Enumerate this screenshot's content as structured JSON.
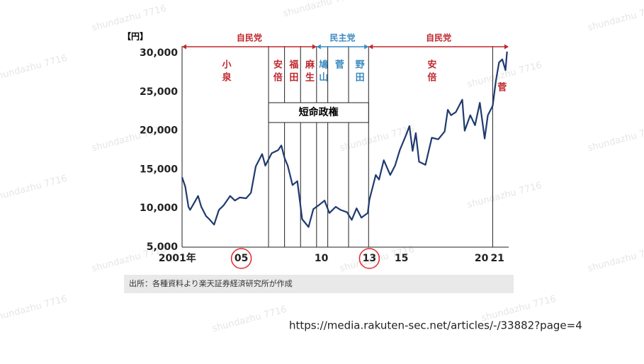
{
  "chart_data": {
    "type": "line",
    "y_unit": "【円】",
    "x": [
      2001.3,
      2001.5,
      2001.7,
      2001.8,
      2002.0,
      2002.3,
      2002.5,
      2002.8,
      2003.0,
      2003.3,
      2003.6,
      2003.9,
      2004.3,
      2004.6,
      2004.9,
      2005.3,
      2005.6,
      2005.9,
      2006.3,
      2006.5,
      2006.9,
      2007.3,
      2007.5,
      2007.7,
      2007.9,
      2008.2,
      2008.5,
      2008.8,
      2009.2,
      2009.5,
      2009.9,
      2010.2,
      2010.5,
      2010.9,
      2011.2,
      2011.6,
      2011.9,
      2012.2,
      2012.5,
      2012.9,
      2013.0,
      2013.4,
      2013.6,
      2013.9,
      2014.3,
      2014.6,
      2014.9,
      2015.3,
      2015.5,
      2015.7,
      2015.9,
      2016.1,
      2016.5,
      2016.9,
      2017.3,
      2017.7,
      2017.9,
      2018.1,
      2018.4,
      2018.8,
      2018.95,
      2019.3,
      2019.6,
      2019.9,
      2020.2,
      2020.4,
      2020.7,
      2020.9,
      2021.1,
      2021.3,
      2021.5,
      2021.6
    ],
    "values": [
      14000,
      12800,
      10200,
      9800,
      10500,
      11600,
      10200,
      9000,
      8600,
      7900,
      9800,
      10400,
      11600,
      11000,
      11400,
      11300,
      12000,
      15400,
      17000,
      15500,
      17100,
      17500,
      18100,
      16500,
      15500,
      13000,
      13500,
      8600,
      7600,
      9900,
      10500,
      11000,
      9400,
      10200,
      9800,
      9500,
      8500,
      10000,
      8800,
      9400,
      11100,
      14300,
      13700,
      16200,
      14300,
      15500,
      17500,
      19500,
      20600,
      17400,
      19700,
      16000,
      15600,
      19100,
      18900,
      19900,
      22700,
      22000,
      22400,
      24000,
      20000,
      22000,
      20700,
      23600,
      19000,
      22000,
      23200,
      26400,
      28800,
      29200,
      27800,
      30200
    ],
    "color": "#1f3a6e",
    "xlim": [
      2001.3,
      2021.7
    ],
    "xticks": [
      {
        "value": 2001,
        "label": "2001年"
      },
      {
        "value": 2005,
        "label": "05"
      },
      {
        "value": 2010,
        "label": "10"
      },
      {
        "value": 2013,
        "label": "13"
      },
      {
        "value": 2015,
        "label": "15"
      },
      {
        "value": 2020,
        "label": "20"
      },
      {
        "value": 2021,
        "label": "21"
      }
    ],
    "circled_xticks": [
      1,
      3
    ],
    "circle_color": "#e0282d",
    "ylim": [
      5000,
      30000
    ],
    "yticks": [
      {
        "value": 5000,
        "label": "5,000"
      },
      {
        "value": 10000,
        "label": "10,000"
      },
      {
        "value": 15000,
        "label": "15,000"
      },
      {
        "value": 20000,
        "label": "20,000"
      },
      {
        "value": 25000,
        "label": "25,000"
      },
      {
        "value": 30000,
        "label": "30,000"
      }
    ],
    "grid": false,
    "parties": [
      {
        "name": "自民党",
        "color": "#c0282d",
        "start": 2001.3,
        "end": 2009.7
      },
      {
        "name": "民主党",
        "color": "#3a8ac0",
        "start": 2009.7,
        "end": 2012.95
      },
      {
        "name": "自民党",
        "color": "#c0282d",
        "start": 2012.95,
        "end": 2021.7
      }
    ],
    "periods": [
      {
        "name": "小泉",
        "party": 0,
        "start": 2001.3
      },
      {
        "name": "安倍",
        "party": 0,
        "start": 2006.7
      },
      {
        "name": "福田",
        "party": 0,
        "start": 2007.7
      },
      {
        "name": "麻生",
        "party": 0,
        "start": 2008.7
      },
      {
        "name": "鳩山",
        "party": 1,
        "start": 2009.7
      },
      {
        "name": "菅",
        "party": 1,
        "start": 2010.4
      },
      {
        "name": "野田",
        "party": 1,
        "start": 2011.7
      },
      {
        "name": "安倍",
        "party": 2,
        "start": 2012.95
      },
      {
        "name": "菅",
        "party": 2,
        "start": 2020.7
      }
    ],
    "short_term": {
      "label": "短命政権",
      "start": 2006.7,
      "end": 2012.95
    },
    "source": "出所：各種資料より楽天証券経済研究所が作成"
  },
  "url": "https://media.rakuten-sec.net/articles/-/33882?page=4",
  "watermark": "shundazhu 7716"
}
